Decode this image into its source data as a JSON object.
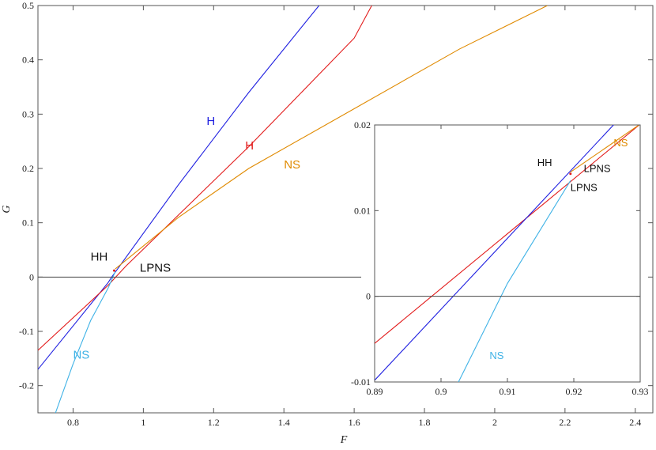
{
  "colors": {
    "H_blue": "#1f1fe0",
    "H_red": "#e21b1b",
    "NS_orange": "#e08a00",
    "NS_cyan": "#3fb2e6",
    "axis": "#555555",
    "zero_line": "#444444",
    "text": "#111111"
  },
  "chart_data": [
    {
      "type": "line",
      "title": "",
      "xlabel": "F",
      "ylabel": "G",
      "xlim": [
        0.7,
        2.45
      ],
      "ylim": [
        -0.25,
        0.5
      ],
      "xticks": [
        0.8,
        1,
        1.2,
        1.4,
        1.6,
        1.8,
        2,
        2.2,
        2.4
      ],
      "xtick_labels": [
        "0.8",
        "1",
        "1.2",
        "1.4",
        "1.6",
        "1.8",
        "2",
        "2.2",
        "2.4"
      ],
      "yticks": [
        -0.2,
        -0.1,
        0,
        0.1,
        0.2,
        0.3,
        0.4,
        0.5
      ],
      "ytick_labels": [
        "-0.2",
        "-0.1",
        "0",
        "0.1",
        "0.2",
        "0.3",
        "0.4",
        "0.5"
      ],
      "grid": false,
      "series": [
        {
          "name": "H",
          "color_key": "H_blue",
          "x": [
            0.7,
            0.9,
            0.91,
            1.1,
            1.3,
            1.5
          ],
          "y": [
            -0.17,
            -0.01,
            0.0,
            0.17,
            0.34,
            0.5
          ]
        },
        {
          "name": "H",
          "color_key": "H_red",
          "x": [
            0.7,
            0.9,
            0.95,
            1.3,
            1.6,
            1.65
          ],
          "y": [
            -0.135,
            -0.015,
            0.02,
            0.24,
            0.44,
            0.5
          ]
        },
        {
          "name": "NS",
          "color_key": "NS_orange",
          "x": [
            0.92,
            1.1,
            1.3,
            1.6,
            1.9,
            2.15
          ],
          "y": [
            0.015,
            0.11,
            0.2,
            0.31,
            0.42,
            0.5
          ]
        },
        {
          "name": "NS",
          "color_key": "NS_cyan",
          "x": [
            0.75,
            0.8,
            0.85,
            0.9,
            0.92
          ],
          "y": [
            -0.25,
            -0.16,
            -0.08,
            -0.02,
            0.01
          ]
        },
        {
          "name": "",
          "color_key": "zero_line",
          "x": [
            0.7,
            1.62
          ],
          "y": [
            0,
            0
          ]
        }
      ],
      "labels": [
        {
          "text": "H",
          "x": 1.18,
          "y": 0.28,
          "color_key": "H_blue"
        },
        {
          "text": "H",
          "x": 1.29,
          "y": 0.235,
          "color_key": "H_red"
        },
        {
          "text": "NS",
          "x": 1.4,
          "y": 0.2,
          "color_key": "NS_orange"
        },
        {
          "text": "NS",
          "x": 0.8,
          "y": -0.15,
          "color_key": "NS_cyan"
        },
        {
          "text": "HH",
          "x": 0.85,
          "y": 0.03,
          "color_key": "text"
        },
        {
          "text": "LPNS",
          "x": 0.99,
          "y": 0.01,
          "color_key": "text"
        }
      ]
    },
    {
      "type": "line",
      "title": "",
      "xlabel": "",
      "ylabel": "",
      "xlim": [
        0.89,
        0.93
      ],
      "ylim": [
        -0.01,
        0.02
      ],
      "xticks": [
        0.89,
        0.9,
        0.91,
        0.92,
        0.93
      ],
      "xtick_labels": [
        "0.89",
        "0.9",
        "0.91",
        "0.92",
        "0.93"
      ],
      "yticks": [
        -0.01,
        0,
        0.01,
        0.02
      ],
      "ytick_labels": [
        "-0.01",
        "0",
        "0.01",
        "0.02"
      ],
      "grid": false,
      "series": [
        {
          "name": "",
          "color_key": "H_red",
          "x": [
            0.89,
            0.93
          ],
          "y": [
            -0.0055,
            0.0201
          ]
        },
        {
          "name": "",
          "color_key": "H_blue",
          "x": [
            0.89,
            0.9261
          ],
          "y": [
            -0.0098,
            0.0201
          ]
        },
        {
          "name": "",
          "color_key": "NS_orange",
          "x": [
            0.9195,
            0.93
          ],
          "y": [
            0.0145,
            0.0201
          ]
        },
        {
          "name": "",
          "color_key": "NS_cyan",
          "x": [
            0.9025,
            0.91,
            0.9195
          ],
          "y": [
            -0.0102,
            0.0015,
            0.0135
          ]
        },
        {
          "name": "",
          "color_key": "zero_line",
          "x": [
            0.89,
            0.93
          ],
          "y": [
            0,
            0
          ]
        }
      ],
      "labels": [
        {
          "text": "HH",
          "x": 0.9145,
          "y": 0.0152,
          "color_key": "text"
        },
        {
          "text": "LPNS",
          "x": 0.9215,
          "y": 0.0145,
          "color_key": "text"
        },
        {
          "text": "LPNS",
          "x": 0.9195,
          "y": 0.0123,
          "color_key": "text"
        },
        {
          "text": "NS",
          "x": 0.926,
          "y": 0.0175,
          "color_key": "NS_orange"
        },
        {
          "text": "NS",
          "x": 0.9073,
          "y": -0.0073,
          "color_key": "NS_cyan"
        }
      ]
    }
  ]
}
